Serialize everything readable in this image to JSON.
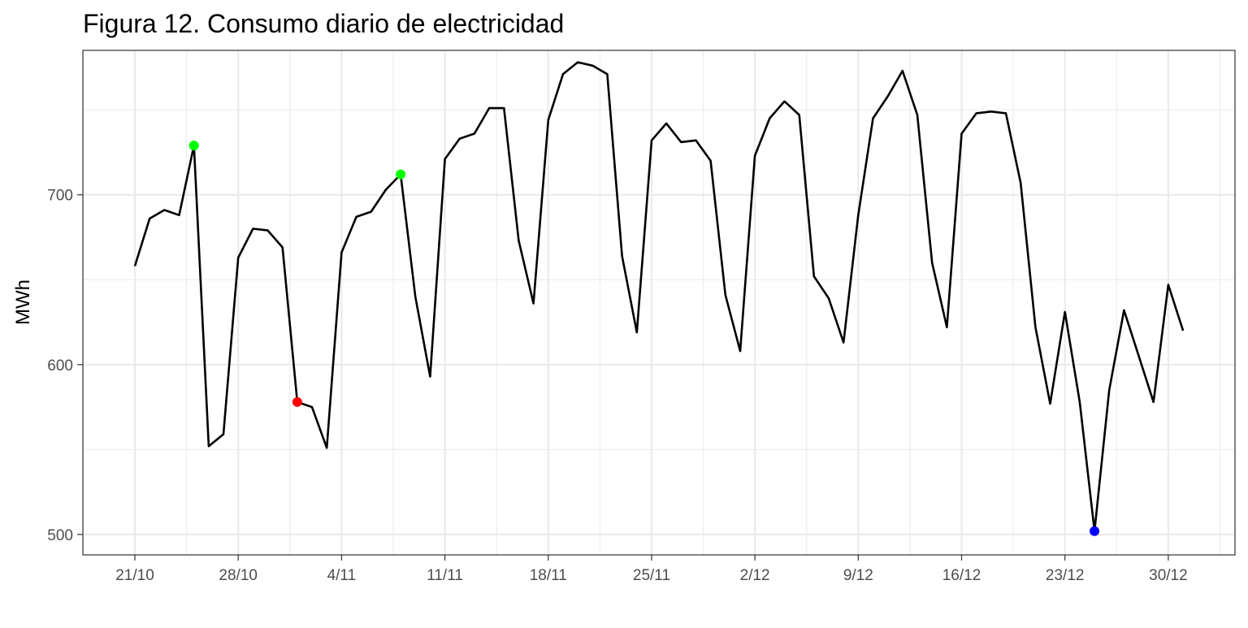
{
  "chart_data": {
    "type": "line",
    "title": "Figura 12. Consumo diario de electricidad",
    "xlabel": "",
    "ylabel": "MWh",
    "x_ticks": [
      "21/10",
      "28/10",
      "4/11",
      "11/11",
      "18/11",
      "25/11",
      "2/12",
      "9/12",
      "16/12",
      "23/12",
      "30/12"
    ],
    "y_ticks": [
      500,
      600,
      700
    ],
    "ylim": [
      488,
      785
    ],
    "grid": true,
    "x_start": "21/10",
    "x_end": "31/12",
    "series": [
      {
        "color": "#000000",
        "values": [
          658,
          686,
          691,
          688,
          729,
          552,
          559,
          663,
          680,
          679,
          669,
          578,
          575,
          551,
          666,
          687,
          690,
          703,
          712,
          640,
          593,
          721,
          733,
          736,
          751,
          751,
          673,
          636,
          744,
          771,
          778,
          776,
          771,
          664,
          619,
          732,
          742,
          731,
          732,
          720,
          641,
          608,
          723,
          745,
          755,
          747,
          652,
          639,
          613,
          688,
          745,
          758,
          773,
          747,
          660,
          622,
          736,
          748,
          749,
          748,
          707,
          622,
          577,
          631,
          578,
          502,
          585,
          632,
          605,
          578,
          647,
          620
        ]
      }
    ],
    "highlights": [
      {
        "date": "25/10",
        "value": 729,
        "color": "#00ff00"
      },
      {
        "date": "1/11",
        "value": 578,
        "color": "#ff0000"
      },
      {
        "date": "8/11",
        "value": 712,
        "color": "#00ff00"
      },
      {
        "date": "25/12",
        "value": 502,
        "color": "#0000ff"
      }
    ]
  }
}
